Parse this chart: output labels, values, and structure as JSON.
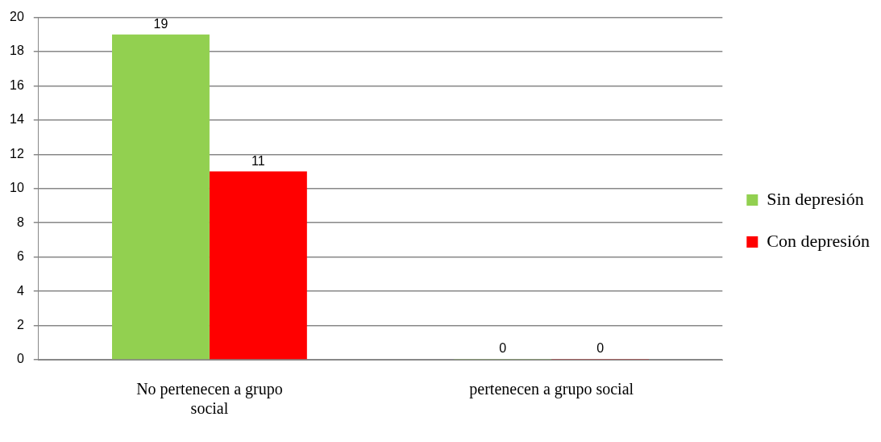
{
  "chart_data": {
    "type": "bar",
    "categories": [
      "No pertenecen a grupo social",
      "pertenecen a grupo social"
    ],
    "series": [
      {
        "name": "Sin depresión",
        "color": "#92d050",
        "values": [
          19,
          0
        ]
      },
      {
        "name": "Con depresión",
        "color": "#ff0000",
        "values": [
          11,
          0
        ]
      }
    ],
    "ylim": [
      0,
      20
    ],
    "yticks": [
      0,
      2,
      4,
      6,
      8,
      10,
      12,
      14,
      16,
      18,
      20
    ],
    "grid": "y",
    "legend": "right",
    "data_labels": true
  }
}
